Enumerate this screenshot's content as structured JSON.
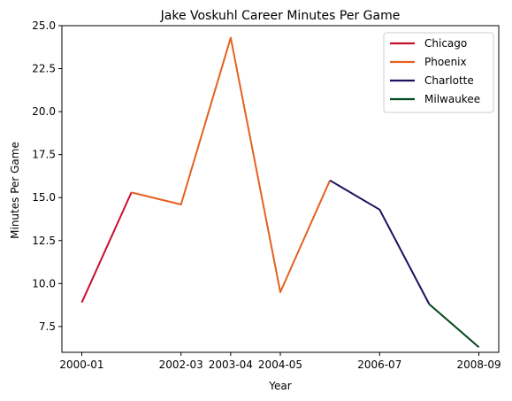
{
  "chart_data": {
    "type": "line",
    "title": "Jake Voskuhl Career Minutes Per Game",
    "xlabel": "Year",
    "ylabel": "Minutes Per Game",
    "x_tick_labels": [
      "2000-01",
      "2002-03",
      "2003-04",
      "2004-05",
      "2006-07",
      "2008-09"
    ],
    "x_points": [
      "2000-01",
      "2001-02",
      "2002-03",
      "2003-04",
      "2004-05",
      "2005-06",
      "2006-07",
      "2007-08",
      "2008-09"
    ],
    "y_ticks": [
      "7.5",
      "10.0",
      "12.5",
      "15.0",
      "17.5",
      "20.0",
      "22.5",
      "25.0"
    ],
    "ylim": [
      6.0,
      25.0
    ],
    "grid": false,
    "legend_position": "top-right",
    "series": [
      {
        "name": "Chicago",
        "color": "#c8102e",
        "points": [
          [
            "2000-01",
            8.9
          ],
          [
            "2001-02",
            15.3
          ]
        ]
      },
      {
        "name": "Phoenix",
        "color": "#e56020",
        "points": [
          [
            "2001-02",
            15.3
          ],
          [
            "2002-03",
            14.6
          ],
          [
            "2003-04",
            24.3
          ],
          [
            "2004-05",
            9.5
          ],
          [
            "2005-06",
            16.0
          ]
        ]
      },
      {
        "name": "Charlotte",
        "color": "#1d1160",
        "points": [
          [
            "2005-06",
            16.0
          ],
          [
            "2006-07",
            14.3
          ],
          [
            "2007-08",
            8.8
          ]
        ]
      },
      {
        "name": "Milwaukee",
        "color": "#00471b",
        "points": [
          [
            "2007-08",
            8.8
          ],
          [
            "2008-09",
            6.3
          ]
        ]
      }
    ]
  }
}
